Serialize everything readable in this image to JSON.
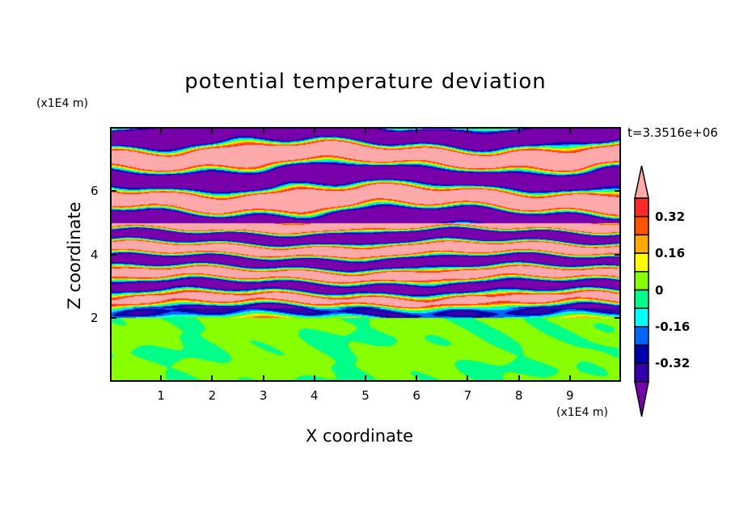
{
  "chart_data": {
    "type": "heatmap",
    "title": "potential temperature deviation",
    "xlabel": "X coordinate",
    "ylabel": "Z coordinate",
    "x_unit": "(x1E4 m)",
    "y_unit": "(x1E4 m)",
    "time_label": "t=3.3516e+06",
    "xlim": [
      0,
      10
    ],
    "ylim": [
      0,
      8
    ],
    "x_ticks": [
      "1",
      "2",
      "3",
      "4",
      "5",
      "6",
      "7",
      "8",
      "9"
    ],
    "y_ticks": [
      "2",
      "4",
      "6"
    ],
    "levels": [
      -0.4,
      -0.32,
      -0.24,
      -0.16,
      -0.08,
      0,
      0.08,
      0.16,
      0.24,
      0.32,
      0.4
    ],
    "colorbar_labels": [
      "0.32",
      "0.16",
      "0",
      "-0.16",
      "-0.32"
    ],
    "colorbar_colors": [
      "#ffaaaa",
      "#ff2a2a",
      "#ff5500",
      "#ffaa00",
      "#ffff00",
      "#88ff00",
      "#00ff88",
      "#00ffff",
      "#0066ff",
      "#0000aa",
      "#3300aa",
      "#7700aa"
    ]
  }
}
